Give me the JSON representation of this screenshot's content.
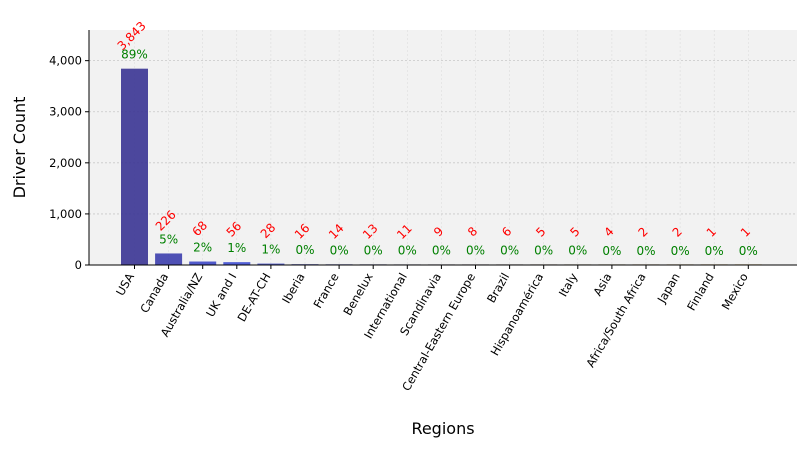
{
  "chart_data": {
    "type": "bar",
    "xlabel": "Regions",
    "ylabel": "Driver Count",
    "ylim": [
      0,
      4600
    ],
    "yticks": [
      0,
      1000,
      2000,
      3000,
      4000
    ],
    "ytick_labels": [
      "0",
      "1,000",
      "2,000",
      "3,000",
      "4,000"
    ],
    "grid": true,
    "categories": [
      "USA",
      "Canada",
      "Australia/NZ",
      "UK and I",
      "DE-AT-CH",
      "Iberia",
      "France",
      "Benelux",
      "International",
      "Scandinavia",
      "Central-Eastern Europe",
      "Brazil",
      "Hispanoamérica",
      "Italy",
      "Asia",
      "Africa/South Africa",
      "Japan",
      "Finland",
      "Mexico"
    ],
    "values": [
      3843,
      226,
      68,
      56,
      28,
      16,
      14,
      13,
      11,
      9,
      8,
      6,
      5,
      5,
      4,
      2,
      2,
      1,
      1
    ],
    "value_labels": [
      "3,843",
      "226",
      "68",
      "56",
      "28",
      "16",
      "14",
      "13",
      "11",
      "9",
      "8",
      "6",
      "5",
      "5",
      "4",
      "2",
      "2",
      "1",
      "1"
    ],
    "percent_labels": [
      "89%",
      "5%",
      "2%",
      "1%",
      "1%",
      "0%",
      "0%",
      "0%",
      "0%",
      "0%",
      "0%",
      "0%",
      "0%",
      "0%",
      "0%",
      "0%",
      "0%",
      "0%",
      "0%"
    ],
    "colors": {
      "bar_start": "#3a3494",
      "bar_mid": "#3f4fd8",
      "bar_end": "#b8860b",
      "value_label": "#ff0000",
      "percent_label": "#008000",
      "plot_bg": "#f2f2f2",
      "grid": "#c8c8c8"
    }
  }
}
